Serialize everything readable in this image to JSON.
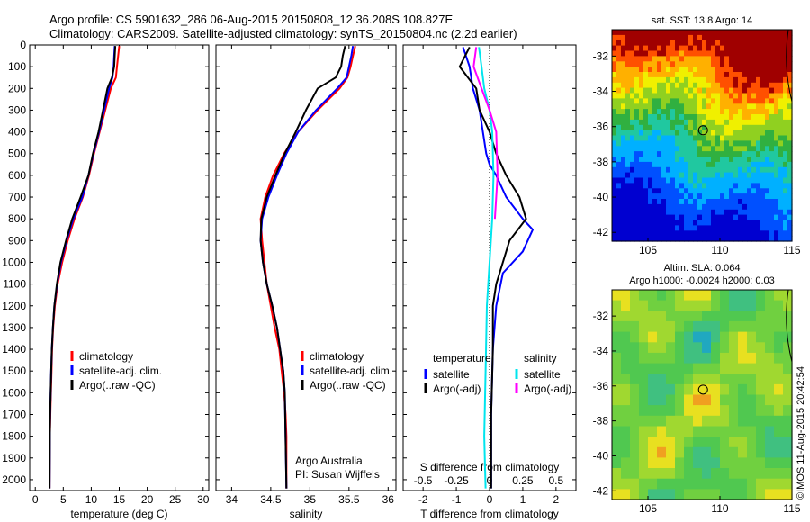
{
  "header": {
    "line1": "Argo profile: CS 5901632_286 06-Aug-2015 20150808_12 36.208S 108.827E",
    "line2": "Climatology: CARS2009. Satellite-adjusted climatology: synTS_20150804.nc (2.2d earlier)"
  },
  "credit": {
    "org": "Argo Australia",
    "pi": "PI: Susan Wijffels",
    "stamp": "©IMOS 11-Aug-2015 20:42:54"
  },
  "legend": {
    "climatology": "climatology",
    "satellite_adj": "satellite-adj. clim.",
    "argo": "Argo(..raw -QC)",
    "temperature": "temperature",
    "salinity": "salinity",
    "satellite": "satellite",
    "argo_adj": "Argo(-adj)"
  },
  "maps": {
    "sst_title": "sat. SST: 13.8 Argo: 14",
    "sla_title1": "Altim. SLA: 0.064",
    "sla_title2": "Argo h1000: -0.0024 h2000: 0.03",
    "float_lon": 108.827,
    "float_lat": -36.208
  },
  "colors": {
    "climatology": "#ff0000",
    "satellite": "#0000ff",
    "argo": "#000000",
    "sal_satellite": "#00e5ee",
    "sal_argo": "#ff00ff"
  },
  "chart_data": [
    {
      "type": "line",
      "id": "temperature",
      "xlabel": "temperature (deg C)",
      "ylabel": "",
      "xlim": [
        -1,
        31
      ],
      "ylim": [
        2050,
        0
      ],
      "xticks": [
        0,
        5,
        10,
        15,
        20,
        25,
        30
      ],
      "yticks": [
        0,
        100,
        200,
        300,
        400,
        500,
        600,
        700,
        800,
        900,
        1000,
        1100,
        1200,
        1300,
        1400,
        1500,
        1600,
        1700,
        1800,
        1900,
        2000
      ],
      "series": [
        {
          "name": "climatology",
          "color": "#ff0000",
          "x": [
            15.0,
            14.8,
            14.6,
            14.4,
            13.5,
            12.5,
            11.5,
            10.5,
            9.6,
            8.5,
            7.0,
            5.8,
            4.8,
            4.0,
            3.5,
            3.2,
            3.0,
            2.9,
            2.8,
            2.7,
            2.6,
            2.55
          ],
          "y": [
            5,
            50,
            100,
            150,
            200,
            300,
            400,
            500,
            600,
            700,
            800,
            900,
            1000,
            1100,
            1200,
            1300,
            1400,
            1500,
            1600,
            1700,
            1800,
            2040
          ]
        },
        {
          "name": "satellite-adj. clim.",
          "color": "#0000ff",
          "x": [
            14.2,
            14.1,
            14.0,
            13.8,
            13.2,
            12.3,
            11.4,
            10.4,
            9.5,
            8.4,
            6.8,
            5.6,
            4.6,
            3.9,
            3.4,
            3.15,
            2.95,
            2.85,
            2.75,
            2.65,
            2.6,
            2.55
          ],
          "y": [
            5,
            50,
            100,
            150,
            200,
            300,
            400,
            500,
            600,
            700,
            800,
            900,
            1000,
            1100,
            1200,
            1300,
            1400,
            1500,
            1600,
            1700,
            1800,
            2040
          ]
        },
        {
          "name": "Argo(..raw -QC)",
          "color": "#000000",
          "x": [
            14.3,
            14.2,
            14.1,
            13.7,
            12.9,
            12.1,
            11.3,
            10.3,
            9.5,
            8.1,
            6.6,
            5.5,
            4.5,
            3.85,
            3.4,
            3.15,
            2.95,
            2.85,
            2.75,
            2.65,
            2.6,
            2.55
          ],
          "y": [
            5,
            50,
            100,
            150,
            200,
            300,
            400,
            500,
            600,
            700,
            800,
            900,
            1000,
            1100,
            1200,
            1300,
            1400,
            1500,
            1600,
            1700,
            1800,
            2040
          ]
        }
      ]
    },
    {
      "type": "line",
      "id": "salinity",
      "xlabel": "salinity",
      "ylabel": "",
      "xlim": [
        33.8,
        36.1
      ],
      "ylim": [
        2050,
        0
      ],
      "xticks": [
        34,
        34.5,
        35,
        35.5,
        36
      ],
      "series": [
        {
          "name": "climatology",
          "color": "#ff0000",
          "x": [
            35.58,
            35.55,
            35.52,
            35.48,
            35.38,
            35.1,
            34.85,
            34.67,
            34.53,
            34.43,
            34.37,
            34.39,
            34.45,
            34.55,
            34.61,
            34.64,
            34.67,
            34.69,
            34.7,
            34.7
          ],
          "y": [
            5,
            50,
            100,
            150,
            200,
            300,
            400,
            500,
            600,
            700,
            800,
            900,
            1100,
            1300,
            1400,
            1500,
            1600,
            1700,
            1800,
            2040
          ]
        },
        {
          "name": "satellite-adj. clim.",
          "color": "#0000ff",
          "x": [
            35.55,
            35.53,
            35.5,
            35.47,
            35.35,
            35.08,
            34.85,
            34.7,
            34.58,
            34.47,
            34.39,
            34.37,
            34.4,
            34.45,
            34.52,
            34.58,
            34.62,
            34.66,
            34.68,
            34.7
          ],
          "y": [
            5,
            50,
            100,
            150,
            200,
            300,
            400,
            500,
            600,
            700,
            800,
            900,
            1000,
            1100,
            1200,
            1300,
            1400,
            1500,
            1600,
            2040
          ]
        },
        {
          "name": "Argo(..raw -QC)",
          "color": "#000000",
          "x": [
            35.45,
            35.42,
            35.4,
            35.33,
            35.1,
            34.95,
            34.82,
            34.68,
            34.56,
            34.45,
            34.38,
            34.37,
            34.4,
            34.45,
            34.52,
            34.58,
            34.62,
            34.66,
            34.68,
            34.7
          ],
          "y": [
            5,
            50,
            100,
            150,
            200,
            300,
            400,
            500,
            600,
            700,
            800,
            900,
            1000,
            1100,
            1200,
            1300,
            1400,
            1500,
            1600,
            2040
          ]
        }
      ]
    },
    {
      "type": "line",
      "id": "difference",
      "xlabel": "T difference from climatology",
      "x2label": "S difference from climatology",
      "ylabel": "",
      "xlim": [
        -2.6,
        2.6
      ],
      "ylim": [
        2050,
        0
      ],
      "xticks": [
        -2,
        -1,
        0,
        1,
        2
      ],
      "x2ticks": [
        -0.5,
        -0.25,
        0,
        0.25,
        0.5
      ],
      "series": [
        {
          "name": "temperature satellite",
          "color": "#0000ff",
          "x": [
            -0.8,
            -0.6,
            -0.5,
            -0.3,
            -0.2,
            -0.1,
            0.0,
            0.2,
            0.5,
            1.0,
            1.3,
            1.0,
            0.4,
            0.2,
            0.1,
            0.05,
            0.05
          ],
          "y": [
            10,
            100,
            200,
            300,
            400,
            500,
            550,
            600,
            700,
            800,
            850,
            950,
            1050,
            1200,
            1400,
            1700,
            2040
          ]
        },
        {
          "name": "temperature Argo(-adj)",
          "color": "#000000",
          "x": [
            -0.6,
            -0.9,
            -0.4,
            -0.3,
            0.0,
            0.2,
            0.5,
            0.9,
            1.1,
            0.6,
            0.4,
            0.3,
            0.2,
            0.1,
            0.1,
            0.05,
            0.05
          ],
          "y": [
            10,
            100,
            200,
            300,
            400,
            500,
            600,
            700,
            800,
            900,
            1000,
            1050,
            1100,
            1200,
            1400,
            1700,
            2040
          ]
        },
        {
          "name": "salinity satellite",
          "color": "#00e5ee",
          "x": [
            -0.08,
            -0.06,
            -0.04,
            0.0,
            0.02,
            0.03,
            0.02,
            0.0,
            -0.02,
            -0.03,
            -0.04,
            -0.03
          ],
          "y": [
            10,
            100,
            200,
            300,
            400,
            600,
            800,
            1000,
            1200,
            1500,
            1800,
            2040
          ]
        },
        {
          "name": "salinity Argo(-adj)",
          "color": "#ff00ff",
          "x": [
            -0.1,
            -0.12,
            -0.06,
            0.0,
            0.05,
            0.06,
            0.04
          ],
          "y": [
            10,
            100,
            200,
            300,
            400,
            600,
            800
          ]
        }
      ]
    },
    {
      "type": "heatmap",
      "id": "sst-map",
      "title": "sat. SST: 13.8 Argo: 14",
      "xlim": [
        102.5,
        115
      ],
      "ylim": [
        -42.5,
        -30.5
      ],
      "xticks": [
        105,
        110,
        115
      ],
      "yticks": [
        -32,
        -34,
        -36,
        -38,
        -40,
        -42
      ]
    },
    {
      "type": "heatmap",
      "id": "sla-map",
      "title": "Altim. SLA: 0.064",
      "xlim": [
        102.5,
        115
      ],
      "ylim": [
        -42.5,
        -30.5
      ],
      "xticks": [
        105,
        110,
        115
      ],
      "yticks": [
        -32,
        -34,
        -36,
        -38,
        -40,
        -42
      ]
    }
  ]
}
